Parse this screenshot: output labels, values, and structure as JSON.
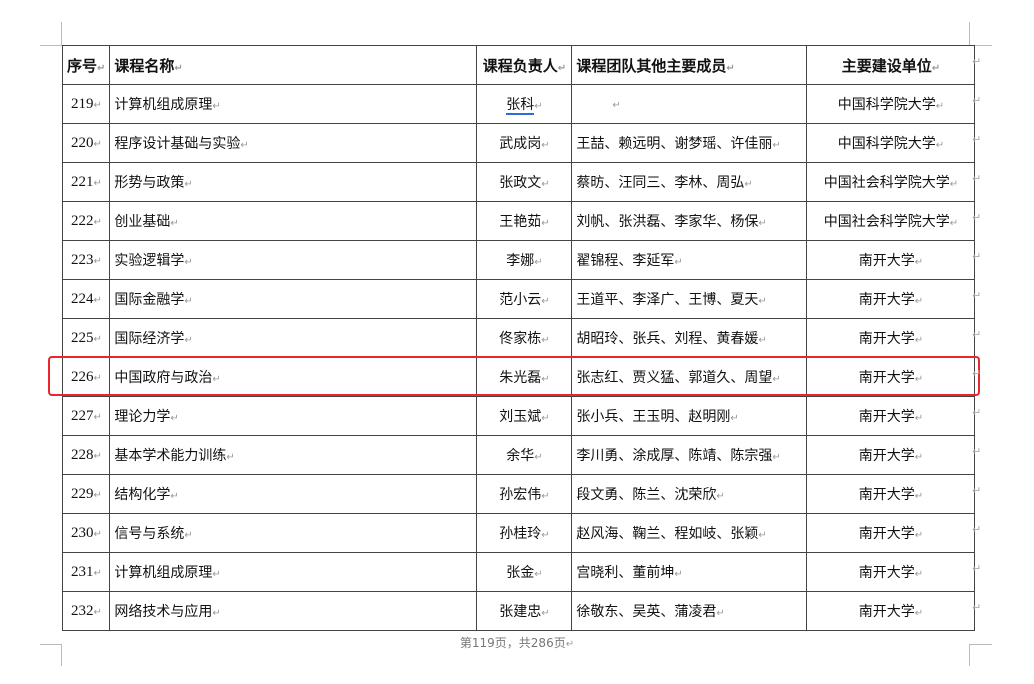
{
  "table": {
    "headers": [
      "序号",
      "课程名称",
      "课程负责人",
      "课程团队其他主要成员",
      "主要建设单位"
    ],
    "rows": [
      [
        "219",
        "计算机组成原理",
        "张科",
        "",
        "中国科学院大学"
      ],
      [
        "220",
        "程序设计基础与实验",
        "武成岗",
        "王喆、赖远明、谢梦瑶、许佳丽",
        "中国科学院大学"
      ],
      [
        "221",
        "形势与政策",
        "张政文",
        "蔡昉、汪同三、李林、周弘",
        "中国社会科学院大学"
      ],
      [
        "222",
        "创业基础",
        "王艳茹",
        "刘帆、张洪磊、李家华、杨保",
        "中国社会科学院大学"
      ],
      [
        "223",
        "实验逻辑学",
        "李娜",
        "翟锦程、李延军",
        "南开大学"
      ],
      [
        "224",
        "国际金融学",
        "范小云",
        "王道平、李泽广、王博、夏天",
        "南开大学"
      ],
      [
        "225",
        "国际经济学",
        "佟家栋",
        "胡昭玲、张兵、刘程、黄春媛",
        "南开大学"
      ],
      [
        "226",
        "中国政府与政治",
        "朱光磊",
        "张志红、贾义猛、郭道久、周望",
        "南开大学"
      ],
      [
        "227",
        "理论力学",
        "刘玉斌",
        "张小兵、王玉明、赵明刚",
        "南开大学"
      ],
      [
        "228",
        "基本学术能力训练",
        "余华",
        "李川勇、涂成厚、陈靖、陈宗强",
        "南开大学"
      ],
      [
        "229",
        "结构化学",
        "孙宏伟",
        "段文勇、陈兰、沈荣欣",
        "南开大学"
      ],
      [
        "230",
        "信号与系统",
        "孙桂玲",
        "赵风海、鞠兰、程如岐、张颖",
        "南开大学"
      ],
      [
        "231",
        "计算机组成原理",
        "张金",
        "宫晓利、董前坤",
        "南开大学"
      ],
      [
        "232",
        "网络技术与应用",
        "张建忠",
        "徐敬东、吴英、蒲凌君",
        "南开大学"
      ]
    ],
    "highlighted_row": "226",
    "highlight_color": "#e8262b"
  },
  "footer": {
    "page_info": "第119页，共286页"
  },
  "paragraph_mark": "↵"
}
